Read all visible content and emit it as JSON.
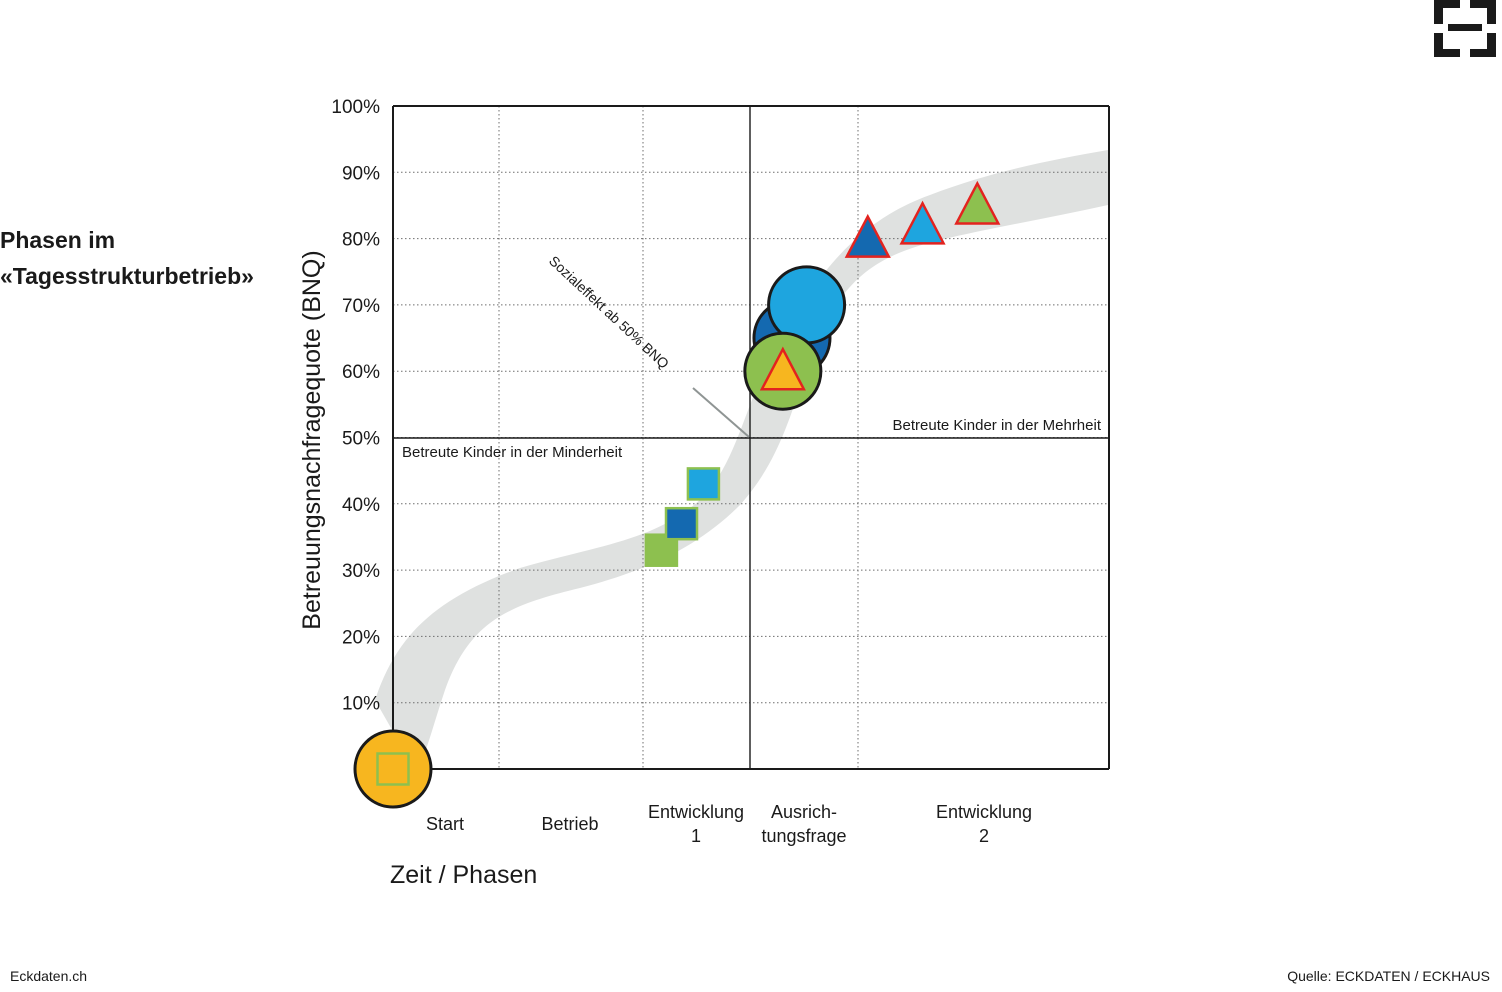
{
  "page": {
    "title_lines": [
      "Phasen im",
      "«Tagesstrukturbetrieb»"
    ],
    "footer_left": "Eckdaten.ch",
    "footer_right": "Quelle: ECKDATEN / ECKHAUS"
  },
  "chart_data": {
    "type": "scatter",
    "title": "",
    "xlabel": "Zeit / Phasen",
    "ylabel": "Betreuungsnachfragequote (BNQ)",
    "ylim": [
      0,
      100
    ],
    "y_ticks": [
      "0",
      "10%",
      "20%",
      "30%",
      "40%",
      "50%",
      "60%",
      "70%",
      "80%",
      "90%",
      "100%"
    ],
    "phases": [
      {
        "label": [
          "Start"
        ]
      },
      {
        "label": [
          "Betrieb"
        ]
      },
      {
        "label": [
          "Entwicklung",
          "1"
        ]
      },
      {
        "label": [
          "Ausrich-",
          "tungsfrage"
        ]
      },
      {
        "label": [
          "Entwicklung",
          "2"
        ]
      }
    ],
    "region_labels": {
      "lower": "Betreute Kinder in der Minderheit",
      "upper": "Betreute Kinder in der Mehrheit"
    },
    "annotation": "Sozialeffekt ab 50% BNQ",
    "grid": true,
    "colors": {
      "yellow": "#f7b61f",
      "green": "#8dc04f",
      "dark_blue": "#1469b0",
      "light_blue": "#1ea5df",
      "red_outline": "#e3231f",
      "band": "#dfe1e0"
    },
    "markers": [
      {
        "shape": "circle",
        "x": 0.0,
        "y": 0,
        "fill": "yellow",
        "size": "large"
      },
      {
        "shape": "square",
        "x": 0.0,
        "y": 0,
        "fill": "yellow",
        "stroke": "green"
      },
      {
        "shape": "square",
        "x": 2.94,
        "y": 33,
        "fill": "green",
        "stroke": "green"
      },
      {
        "shape": "square",
        "x": 3.16,
        "y": 37,
        "fill": "dark_blue",
        "stroke": "green"
      },
      {
        "shape": "square",
        "x": 3.4,
        "y": 43,
        "fill": "light_blue",
        "stroke": "green"
      },
      {
        "shape": "circle",
        "x": 4.37,
        "y": 65,
        "fill": "dark_blue",
        "size": "large"
      },
      {
        "shape": "circle",
        "x": 4.53,
        "y": 70,
        "fill": "light_blue",
        "size": "large"
      },
      {
        "shape": "circle",
        "x": 4.27,
        "y": 60,
        "fill": "green",
        "size": "large"
      },
      {
        "shape": "triangle",
        "x": 4.27,
        "y": 60,
        "fill": "yellow",
        "stroke": "red_outline"
      },
      {
        "shape": "triangle",
        "x": 5.2,
        "y": 80,
        "fill": "dark_blue",
        "stroke": "red_outline"
      },
      {
        "shape": "triangle",
        "x": 5.8,
        "y": 82,
        "fill": "light_blue",
        "stroke": "red_outline"
      },
      {
        "shape": "triangle",
        "x": 6.4,
        "y": 85,
        "fill": "green",
        "stroke": "red_outline"
      }
    ]
  }
}
